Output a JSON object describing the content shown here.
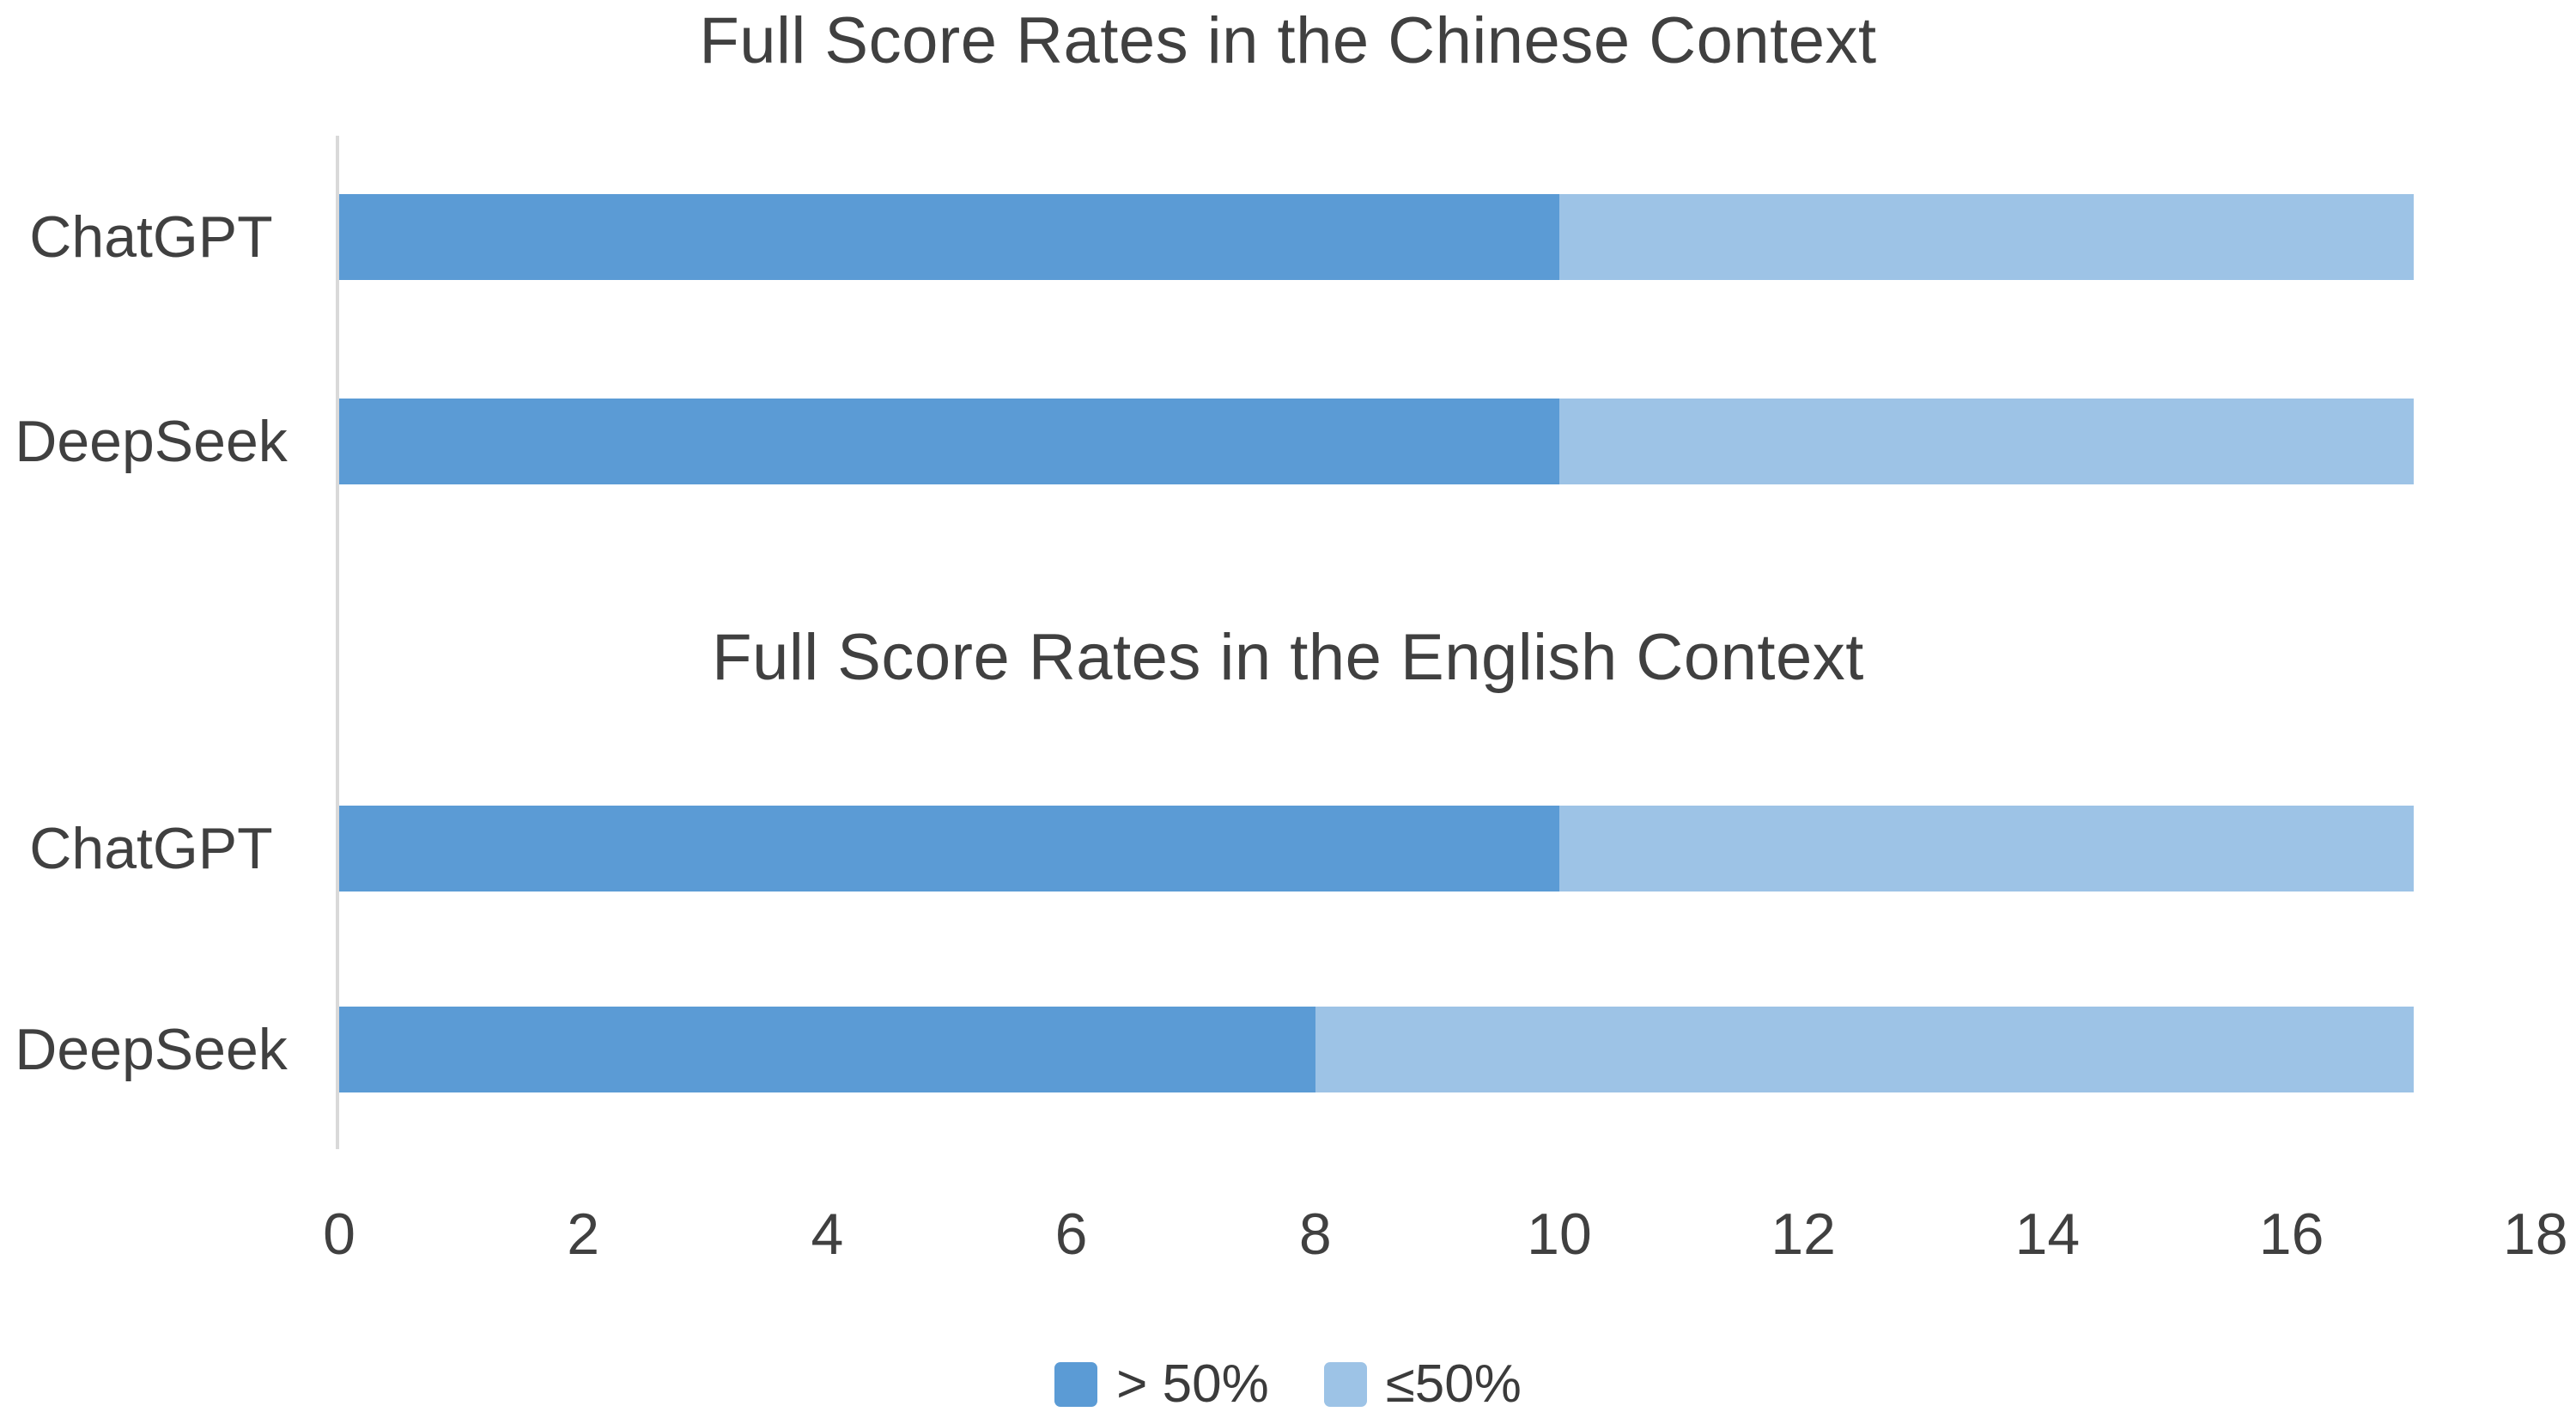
{
  "colors": {
    "series_dark_blue": "#5b9bd5",
    "series_light_blue": "#9dc3e6",
    "axis_line": "#d9d9d9",
    "text": "#404040"
  },
  "chart_data": [
    {
      "type": "bar",
      "orientation": "horizontal",
      "stacked": true,
      "title": "Full Score Rates in the Chinese Context",
      "categories": [
        "ChatGPT",
        "DeepSeek"
      ],
      "series": [
        {
          "name": "> 50%",
          "color": "#5b9bd5",
          "values": [
            10,
            10
          ]
        },
        {
          "name": "≤50%",
          "color": "#9dc3e6",
          "values": [
            7,
            7
          ]
        }
      ],
      "xlim": [
        0,
        18
      ],
      "x_ticks": [
        0,
        2,
        4,
        6,
        8,
        10,
        12,
        14,
        16,
        18
      ],
      "grid": false,
      "legend_position": "bottom"
    },
    {
      "type": "bar",
      "orientation": "horizontal",
      "stacked": true,
      "title": "Full Score Rates in the English Context",
      "categories": [
        "ChatGPT",
        "DeepSeek"
      ],
      "series": [
        {
          "name": "> 50%",
          "color": "#5b9bd5",
          "values": [
            10,
            8
          ]
        },
        {
          "name": "≤50%",
          "color": "#9dc3e6",
          "values": [
            7,
            9
          ]
        }
      ],
      "xlim": [
        0,
        18
      ],
      "x_ticks": [
        0,
        2,
        4,
        6,
        8,
        10,
        12,
        14,
        16,
        18
      ],
      "grid": false,
      "legend_position": "bottom"
    }
  ],
  "x_axis": {
    "min": 0,
    "max": 18,
    "tick_labels": [
      "0",
      "2",
      "4",
      "6",
      "8",
      "10",
      "12",
      "14",
      "16",
      "18"
    ]
  },
  "legend": {
    "items": [
      {
        "label": "> 50%",
        "color": "#5b9bd5"
      },
      {
        "label": "≤50%",
        "color": "#9dc3e6"
      }
    ]
  }
}
